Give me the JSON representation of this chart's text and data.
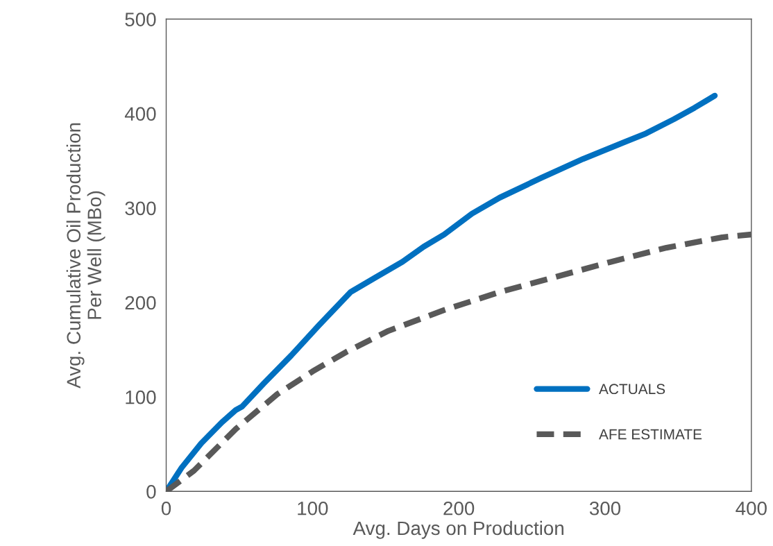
{
  "chart_data": {
    "type": "line",
    "xlabel": "Avg. Days on Production",
    "ylabel": "Avg. Cumulative Oil Production\nPer Well (MBo)",
    "xlim": [
      0,
      400
    ],
    "ylim": [
      0,
      500
    ],
    "xticks": [
      0,
      100,
      200,
      300,
      400
    ],
    "yticks": [
      0,
      100,
      200,
      300,
      400,
      500
    ],
    "grid": false,
    "legend": "bottom right",
    "series": [
      {
        "name": "ACTUALS",
        "color": "#0070c0",
        "line_style": "solid",
        "x": [
          0,
          10.5,
          24,
          38,
          47.5,
          52,
          66.5,
          85.5,
          104.5,
          126,
          142.5,
          161.5,
          176,
          190,
          209,
          228,
          256.5,
          285,
          313.5,
          328,
          347,
          361,
          375
        ],
        "values": [
          0,
          25,
          51,
          73,
          86,
          90,
          114,
          144,
          176,
          211,
          226,
          243,
          259,
          272,
          294,
          311,
          332,
          352,
          370,
          379,
          394,
          406,
          419
        ]
      },
      {
        "name": "AFE ESTIMATE",
        "color": "#595959",
        "line_style": "dashed",
        "x": [
          0,
          19,
          47.5,
          76,
          100,
          123.5,
          152,
          190,
          228,
          266,
          304,
          342,
          380,
          400
        ],
        "values": [
          0,
          22,
          66,
          103,
          127,
          148,
          170,
          192,
          211,
          227,
          243,
          258,
          269,
          272
        ]
      }
    ]
  }
}
